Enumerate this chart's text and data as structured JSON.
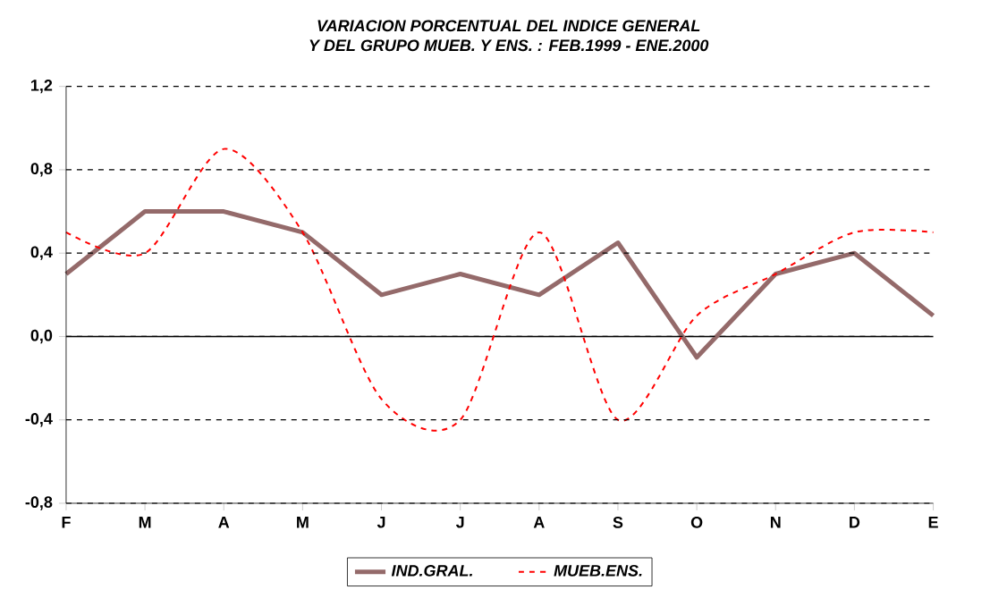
{
  "chart_data": {
    "type": "line",
    "title": "VARIACION PORCENTUAL DEL INDICE GENERAL\nY DEL GRUPO MUEB. Y ENS. : FEB.1999 - ENE.2000",
    "categories": [
      "F",
      "M",
      "A",
      "M",
      "J",
      "J",
      "A",
      "S",
      "O",
      "N",
      "D",
      "E"
    ],
    "series": [
      {
        "name": "IND.GRAL.",
        "color": "#946a6a",
        "line_style": "solid",
        "values": [
          0.3,
          0.6,
          0.6,
          0.5,
          0.2,
          0.3,
          0.2,
          0.45,
          -0.1,
          0.3,
          0.4,
          0.1
        ]
      },
      {
        "name": "MUEB.ENS.",
        "color": "#ff0000",
        "line_style": "dashed",
        "values": [
          0.5,
          0.4,
          0.9,
          0.5,
          -0.3,
          -0.4,
          0.5,
          -0.4,
          0.1,
          0.3,
          0.5,
          0.5
        ]
      }
    ],
    "ylim": [
      -0.8,
      1.2
    ],
    "yticks": [
      {
        "value": -0.8,
        "label": "-0,8"
      },
      {
        "value": -0.4,
        "label": "-0,4"
      },
      {
        "value": 0,
        "label": "0,0"
      },
      {
        "value": 0.4,
        "label": "0,4"
      },
      {
        "value": 0.8,
        "label": "0,8"
      },
      {
        "value": 1.2,
        "label": "1,2"
      }
    ],
    "grid": "y",
    "legend": "bottom",
    "marker": "none"
  }
}
